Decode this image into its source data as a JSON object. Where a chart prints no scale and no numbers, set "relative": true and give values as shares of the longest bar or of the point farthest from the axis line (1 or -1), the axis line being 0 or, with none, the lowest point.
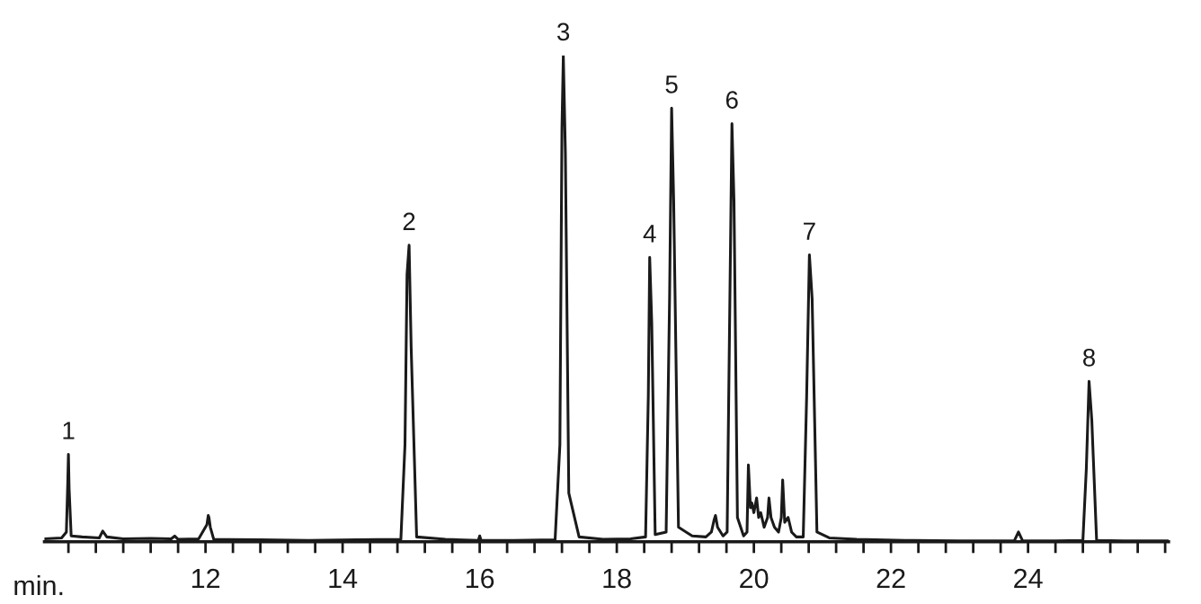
{
  "chart_data": {
    "type": "line",
    "relative": true,
    "xlabel": "min.",
    "color": "#1a1a1a",
    "marker": "none",
    "line_style": "solid",
    "grid": false,
    "legend": false,
    "xlim": [
      9.65,
      26.05
    ],
    "xticks": [
      {
        "value": 10,
        "label": null
      },
      {
        "value": 10.4,
        "label": null
      },
      {
        "value": 10.8,
        "label": null
      },
      {
        "value": 11.2,
        "label": null
      },
      {
        "value": 11.6,
        "label": null
      },
      12,
      {
        "value": 12.4,
        "label": null
      },
      {
        "value": 12.8,
        "label": null
      },
      {
        "value": 13.2,
        "label": null
      },
      {
        "value": 13.6,
        "label": null
      },
      14,
      {
        "value": 14.4,
        "label": null
      },
      {
        "value": 14.8,
        "label": null
      },
      {
        "value": 15.2,
        "label": null
      },
      {
        "value": 15.6,
        "label": null
      },
      16,
      {
        "value": 16.4,
        "label": null
      },
      {
        "value": 16.8,
        "label": null
      },
      {
        "value": 17.2,
        "label": null
      },
      {
        "value": 17.6,
        "label": null
      },
      18,
      {
        "value": 18.4,
        "label": null
      },
      {
        "value": 18.8,
        "label": null
      },
      {
        "value": 19.2,
        "label": null
      },
      {
        "value": 19.6,
        "label": null
      },
      20,
      {
        "value": 20.4,
        "label": null
      },
      {
        "value": 20.8,
        "label": null
      },
      {
        "value": 21.2,
        "label": null
      },
      {
        "value": 21.6,
        "label": null
      },
      22,
      {
        "value": 22.4,
        "label": null
      },
      {
        "value": 22.8,
        "label": null
      },
      {
        "value": 23.2,
        "label": null
      },
      {
        "value": 23.6,
        "label": null
      },
      24,
      {
        "value": 24.4,
        "label": null
      },
      {
        "value": 24.8,
        "label": null
      },
      {
        "value": 25.2,
        "label": null
      },
      {
        "value": 25.6,
        "label": null
      },
      {
        "value": 26,
        "label": null
      }
    ],
    "x": [
      9.65,
      9.9,
      9.97,
      9.99,
      10.0,
      10.01,
      10.04,
      10.2,
      10.45,
      10.5,
      10.56,
      10.8,
      11.2,
      11.5,
      11.55,
      11.6,
      11.9,
      12.02,
      12.04,
      12.05,
      12.07,
      12.12,
      12.8,
      13.5,
      14.2,
      14.85,
      14.91,
      14.94,
      14.97,
      15.0,
      15.08,
      15.5,
      15.98,
      16.0,
      16.02,
      16.5,
      17.1,
      17.17,
      17.2,
      17.22,
      17.25,
      17.3,
      17.45,
      17.8,
      18.2,
      18.42,
      18.46,
      18.48,
      18.51,
      18.56,
      18.72,
      18.77,
      18.8,
      18.83,
      18.9,
      19.1,
      19.3,
      19.38,
      19.42,
      19.44,
      19.47,
      19.55,
      19.61,
      19.65,
      19.68,
      19.71,
      19.76,
      19.85,
      19.9,
      19.92,
      19.95,
      19.97,
      20.0,
      20.04,
      20.07,
      20.1,
      20.15,
      20.2,
      20.22,
      20.25,
      20.3,
      20.36,
      20.4,
      20.42,
      20.45,
      20.5,
      20.55,
      20.62,
      20.72,
      20.77,
      20.81,
      20.85,
      20.92,
      21.1,
      21.5,
      22.2,
      23.0,
      23.8,
      23.86,
      23.92,
      24.4,
      24.8,
      24.85,
      24.89,
      24.93,
      25.0,
      25.4,
      26.05
    ],
    "values": [
      0.006,
      0.008,
      0.02,
      0.12,
      0.18,
      0.11,
      0.012,
      0.01,
      0.008,
      0.022,
      0.01,
      0.006,
      0.007,
      0.006,
      0.012,
      0.005,
      0.006,
      0.035,
      0.054,
      0.05,
      0.03,
      0.005,
      0.004,
      0.003,
      0.004,
      0.005,
      0.2,
      0.55,
      0.61,
      0.4,
      0.01,
      0.005,
      0.003,
      0.012,
      0.003,
      0.003,
      0.004,
      0.2,
      0.85,
      1.0,
      0.8,
      0.1,
      0.01,
      0.005,
      0.006,
      0.01,
      0.3,
      0.585,
      0.45,
      0.015,
      0.02,
      0.5,
      0.892,
      0.7,
      0.03,
      0.012,
      0.01,
      0.02,
      0.045,
      0.054,
      0.03,
      0.012,
      0.02,
      0.5,
      0.86,
      0.7,
      0.05,
      0.012,
      0.02,
      0.158,
      0.07,
      0.08,
      0.06,
      0.09,
      0.05,
      0.06,
      0.03,
      0.05,
      0.09,
      0.05,
      0.03,
      0.02,
      0.05,
      0.127,
      0.04,
      0.05,
      0.02,
      0.01,
      0.01,
      0.3,
      0.59,
      0.5,
      0.02,
      0.008,
      0.005,
      0.003,
      0.002,
      0.002,
      0.02,
      0.002,
      0.002,
      0.003,
      0.15,
      0.33,
      0.25,
      0.003,
      0.002,
      0.002
    ],
    "annotations": [
      {
        "text": "1",
        "x": 10.0,
        "y": 0.18
      },
      {
        "text": "2",
        "x": 14.97,
        "y": 0.61
      },
      {
        "text": "3",
        "x": 17.22,
        "y": 1.0
      },
      {
        "text": "4",
        "x": 18.48,
        "y": 0.585
      },
      {
        "text": "5",
        "x": 18.8,
        "y": 0.892
      },
      {
        "text": "6",
        "x": 19.68,
        "y": 0.86
      },
      {
        "text": "7",
        "x": 20.81,
        "y": 0.59
      },
      {
        "text": "8",
        "x": 24.89,
        "y": 0.33
      }
    ]
  }
}
